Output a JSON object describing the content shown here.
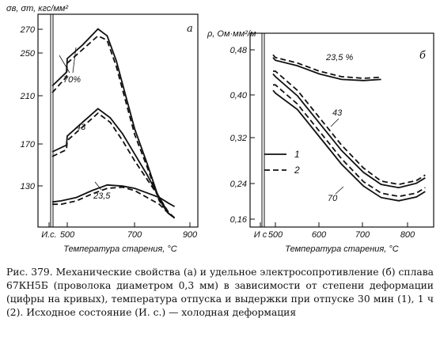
{
  "caption": "Рис. 379. Механические свойства (а) и удельное электросопротивление (б) сплава 67КН5Б (проволока диаметром 0,3 мм) в зависимости от степени деформации (цифры на кривых), температура отпуска и выдержки при отпуске 30 мин (1), 1 ч (2). Исходное состояние (И. с.) — холодная деформация",
  "chart_data": [
    {
      "panel": "а",
      "type": "line",
      "ylabel": "σв, σт, кгс/мм²",
      "xlabel": "Температура старения, °С",
      "x_ticks": [
        "И.с.",
        "500",
        "700",
        "900"
      ],
      "y_ticks": [
        130,
        170,
        210,
        250,
        270
      ],
      "xlim": [
        400,
        900
      ],
      "ylim": [
        104,
        284
      ],
      "grid": false,
      "annotations": [
        "70%",
        "43",
        "23,5"
      ],
      "series": [
        {
          "deformation": "70%",
          "line_style": "solid",
          "points": [
            [
              420,
              228
            ],
            [
              450,
              240
            ],
            [
              500,
              252
            ],
            [
              550,
              264
            ],
            [
              600,
              278
            ],
            [
              630,
              272
            ],
            [
              660,
              250
            ],
            [
              690,
              220
            ],
            [
              720,
              190
            ],
            [
              760,
              160
            ],
            [
              800,
              128
            ],
            [
              830,
              116
            ],
            [
              850,
              112
            ]
          ]
        },
        {
          "deformation": "70%",
          "line_style": "dashed",
          "points": [
            [
              420,
              222
            ],
            [
              450,
              236
            ],
            [
              500,
              248
            ],
            [
              550,
              260
            ],
            [
              600,
              272
            ],
            [
              630,
              268
            ],
            [
              660,
              245
            ],
            [
              690,
              215
            ],
            [
              720,
              185
            ],
            [
              760,
              157
            ],
            [
              800,
              127
            ],
            [
              830,
              116
            ],
            [
              850,
              112
            ]
          ]
        },
        {
          "deformation": "43",
          "line_style": "solid",
          "points": [
            [
              420,
              170
            ],
            [
              450,
              176
            ],
            [
              500,
              184
            ],
            [
              550,
              196
            ],
            [
              600,
              208
            ],
            [
              640,
              200
            ],
            [
              680,
              186
            ],
            [
              720,
              168
            ],
            [
              760,
              150
            ],
            [
              800,
              130
            ],
            [
              830,
              116
            ],
            [
              850,
              112
            ]
          ]
        },
        {
          "deformation": "43",
          "line_style": "dashed",
          "points": [
            [
              420,
              166
            ],
            [
              450,
              172
            ],
            [
              500,
              180
            ],
            [
              550,
              192
            ],
            [
              600,
              204
            ],
            [
              640,
              196
            ],
            [
              680,
              180
            ],
            [
              720,
              162
            ],
            [
              760,
              146
            ],
            [
              800,
              130
            ],
            [
              830,
              117
            ],
            [
              850,
              112
            ]
          ]
        },
        {
          "deformation": "23,5",
          "line_style": "solid",
          "points": [
            [
              420,
              126
            ],
            [
              480,
              127
            ],
            [
              530,
              130
            ],
            [
              580,
              136
            ],
            [
              630,
              141
            ],
            [
              680,
              140
            ],
            [
              720,
              138
            ],
            [
              760,
              134
            ],
            [
              800,
              130
            ],
            [
              830,
              125
            ],
            [
              850,
              122
            ]
          ]
        },
        {
          "deformation": "23,5",
          "line_style": "dashed",
          "points": [
            [
              420,
              124
            ],
            [
              480,
              124
            ],
            [
              530,
              127
            ],
            [
              580,
              133
            ],
            [
              630,
              138
            ],
            [
              680,
              139
            ],
            [
              720,
              136
            ],
            [
              760,
              130
            ],
            [
              800,
              124
            ],
            [
              830,
              116
            ],
            [
              850,
              112
            ]
          ]
        }
      ]
    },
    {
      "panel": "б",
      "type": "line",
      "ylabel": "ρ, Ом·мм²/м",
      "xlabel": "Температура старения, °С",
      "x_ticks": [
        "И с",
        "500",
        "600",
        "700",
        "800"
      ],
      "y_ticks": [
        0.16,
        0.24,
        0.32,
        0.4,
        0.48
      ],
      "xlim": [
        410,
        850
      ],
      "ylim": [
        0.16,
        0.5
      ],
      "grid": false,
      "legend": [
        {
          "label": "1",
          "line_style": "solid"
        },
        {
          "label": "2",
          "line_style": "dashed"
        }
      ],
      "annotations": [
        "23,5 %",
        "43",
        "70"
      ],
      "series": [
        {
          "deformation": "23,5 %",
          "line_style": "solid",
          "points": [
            [
              440,
              0.47
            ],
            [
              500,
              0.465
            ],
            [
              550,
              0.455
            ],
            [
              600,
              0.44
            ],
            [
              650,
              0.43
            ],
            [
              700,
              0.428
            ],
            [
              740,
              0.43
            ]
          ]
        },
        {
          "deformation": "23,5 %",
          "line_style": "dashed",
          "points": [
            [
              440,
              0.475
            ],
            [
              500,
              0.47
            ],
            [
              550,
              0.46
            ],
            [
              600,
              0.445
            ],
            [
              650,
              0.435
            ],
            [
              700,
              0.432
            ],
            [
              740,
              0.434
            ]
          ]
        },
        {
          "deformation": "43",
          "line_style": "solid",
          "points": [
            [
              440,
              0.44
            ],
            [
              500,
              0.435
            ],
            [
              550,
              0.4
            ],
            [
              600,
              0.35
            ],
            [
              650,
              0.3
            ],
            [
              700,
              0.26
            ],
            [
              740,
              0.238
            ],
            [
              780,
              0.232
            ],
            [
              820,
              0.24
            ],
            [
              840,
              0.25
            ]
          ]
        },
        {
          "deformation": "43",
          "line_style": "dashed",
          "points": [
            [
              440,
              0.445
            ],
            [
              500,
              0.445
            ],
            [
              550,
              0.41
            ],
            [
              600,
              0.36
            ],
            [
              650,
              0.31
            ],
            [
              700,
              0.268
            ],
            [
              740,
              0.244
            ],
            [
              780,
              0.238
            ],
            [
              820,
              0.245
            ],
            [
              840,
              0.255
            ]
          ]
        },
        {
          "deformation": "70",
          "line_style": "solid",
          "points": [
            [
              440,
              0.41
            ],
            [
              500,
              0.405
            ],
            [
              550,
              0.375
            ],
            [
              600,
              0.325
            ],
            [
              650,
              0.275
            ],
            [
              700,
              0.235
            ],
            [
              740,
              0.214
            ],
            [
              780,
              0.208
            ],
            [
              820,
              0.215
            ],
            [
              840,
              0.225
            ]
          ]
        },
        {
          "deformation": "70",
          "line_style": "dashed",
          "points": [
            [
              440,
              0.42
            ],
            [
              500,
              0.42
            ],
            [
              550,
              0.385
            ],
            [
              600,
              0.335
            ],
            [
              650,
              0.285
            ],
            [
              700,
              0.243
            ],
            [
              740,
              0.222
            ],
            [
              780,
              0.216
            ],
            [
              820,
              0.222
            ],
            [
              840,
              0.232
            ]
          ]
        }
      ]
    }
  ]
}
